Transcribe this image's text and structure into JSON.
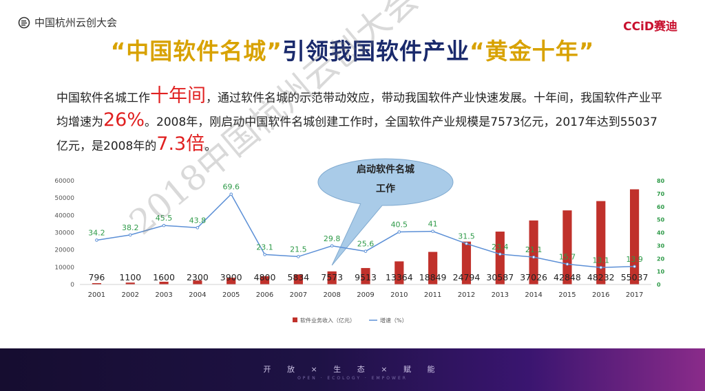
{
  "header": {
    "logo_text": "中国杭州云创大会",
    "brand_a": "CCiD",
    "brand_b": "赛迪"
  },
  "title": {
    "part1": "“中国软件名城”",
    "part2": "引领我国软件产业",
    "part3": "“黄金十年”"
  },
  "body": {
    "t1": "中国软件名城工作",
    "h1": "十年间",
    "t2": "，通过软件名城的示范带动效应，带动我国软件产业快速发展。十年间，我国软件产业平均增速为",
    "h2": "26%",
    "t3": "。2008年，刚启动中国软件名城创建工作时，全国软件产业规模是7573亿元，2017年达到55037亿元，是2008年的",
    "h3": "7.3倍",
    "t4": "。"
  },
  "callout": {
    "line1": "启动软件名城",
    "line2": "工作"
  },
  "chart_data": {
    "type": "bar",
    "categories": [
      "2001",
      "2002",
      "2003",
      "2004",
      "2005",
      "2006",
      "2007",
      "2008",
      "2009",
      "2010",
      "2011",
      "2012",
      "2013",
      "2014",
      "2015",
      "2016",
      "2017"
    ],
    "series": [
      {
        "name": "软件业务收入（亿元）",
        "type": "bar",
        "axis": "left",
        "values": [
          796,
          1100,
          1600,
          2300,
          3900,
          4800,
          5834,
          7573,
          9513,
          13364,
          18849,
          24794,
          30587,
          37026,
          42848,
          48232,
          55037
        ]
      },
      {
        "name": "增速（%）",
        "type": "line",
        "axis": "right",
        "values": [
          34.2,
          38.2,
          45.5,
          43.8,
          69.6,
          23.1,
          21.5,
          29.8,
          25.6,
          40.5,
          41,
          31.5,
          23.4,
          21.1,
          15.7,
          13.1,
          13.9
        ]
      }
    ],
    "ylim_left": [
      0,
      60000
    ],
    "yticks_left": [
      0,
      10000,
      20000,
      30000,
      40000,
      50000,
      60000
    ],
    "ylim_right": [
      0,
      80
    ],
    "yticks_right": [
      0,
      10,
      20,
      30,
      40,
      50,
      60,
      70,
      80
    ],
    "colors": {
      "bar": "#c0312b",
      "line": "#5b8fd6",
      "line_label": "#2e9a48",
      "right_axis": "#2e9a48"
    },
    "legend_position": "bottom"
  },
  "footer": {
    "slogan": "开 放 × 生 态 × 赋 能",
    "sub": "OPEN · ECOLOGY · EMPOWER"
  },
  "watermark": "2018中国杭州云创大会"
}
